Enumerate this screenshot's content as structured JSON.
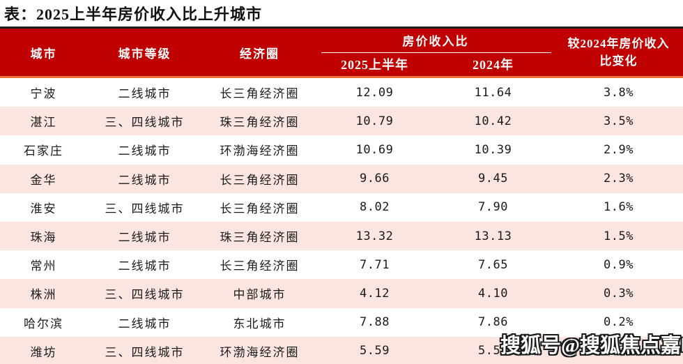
{
  "title": "表：2025上半年房价收入比上升城市",
  "watermark": "搜狐号@搜狐焦点嘉峪关站",
  "colors": {
    "header_bg": "#C00000",
    "header_text": "#ffffff",
    "accent_rule": "#E97132",
    "top_rule": "#1f1f1f",
    "row_alt_bg": "#FBE5E1",
    "body_text": "#1a1a1a"
  },
  "table": {
    "columns": {
      "city": "城市",
      "tier": "城市等级",
      "region": "经济圈",
      "ratio_group": "房价收入比",
      "ratio_2025": "2025上半年",
      "ratio_2024": "2024年",
      "change_line1": "较2024年房价收入",
      "change_line2": "比变化"
    },
    "rows": [
      {
        "city": "宁波",
        "tier": "二线城市",
        "region": "长三角经济圈",
        "r2025": "12.09",
        "r2024": "11.64",
        "change": "3.8%"
      },
      {
        "city": "湛江",
        "tier": "三、四线城市",
        "region": "珠三角经济圈",
        "r2025": "10.79",
        "r2024": "10.42",
        "change": "3.5%"
      },
      {
        "city": "石家庄",
        "tier": "二线城市",
        "region": "环渤海经济圈",
        "r2025": "10.69",
        "r2024": "10.39",
        "change": "2.9%"
      },
      {
        "city": "金华",
        "tier": "二线城市",
        "region": "长三角经济圈",
        "r2025": "9.66",
        "r2024": "9.45",
        "change": "2.3%"
      },
      {
        "city": "淮安",
        "tier": "三、四线城市",
        "region": "长三角经济圈",
        "r2025": "8.02",
        "r2024": "7.90",
        "change": "1.6%"
      },
      {
        "city": "珠海",
        "tier": "二线城市",
        "region": "珠三角经济圈",
        "r2025": "13.32",
        "r2024": "13.13",
        "change": "1.5%"
      },
      {
        "city": "常州",
        "tier": "二线城市",
        "region": "长三角经济圈",
        "r2025": "7.71",
        "r2024": "7.65",
        "change": "0.9%"
      },
      {
        "city": "株洲",
        "tier": "三、四线城市",
        "region": "中部城市",
        "r2025": "4.12",
        "r2024": "4.10",
        "change": "0.3%"
      },
      {
        "city": "哈尔滨",
        "tier": "二线城市",
        "region": "东北城市",
        "r2025": "7.88",
        "r2024": "7.86",
        "change": "0.2%"
      },
      {
        "city": "潍坊",
        "tier": "三、四线城市",
        "region": "环渤海经济圈",
        "r2025": "5.59",
        "r2024": "5.58",
        "change": "0.2%"
      }
    ]
  },
  "chart_data": {
    "type": "table",
    "title": "表：2025上半年房价收入比上升城市",
    "columns": [
      "城市",
      "城市等级",
      "经济圈",
      "房价收入比 2025上半年",
      "房价收入比 2024年",
      "较2024年房价收入比变化"
    ],
    "rows": [
      [
        "宁波",
        "二线城市",
        "长三角经济圈",
        12.09,
        11.64,
        "3.8%"
      ],
      [
        "湛江",
        "三、四线城市",
        "珠三角经济圈",
        10.79,
        10.42,
        "3.5%"
      ],
      [
        "石家庄",
        "二线城市",
        "环渤海经济圈",
        10.69,
        10.39,
        "2.9%"
      ],
      [
        "金华",
        "二线城市",
        "长三角经济圈",
        9.66,
        9.45,
        "2.3%"
      ],
      [
        "淮安",
        "三、四线城市",
        "长三角经济圈",
        8.02,
        7.9,
        "1.6%"
      ],
      [
        "珠海",
        "二线城市",
        "珠三角经济圈",
        13.32,
        13.13,
        "1.5%"
      ],
      [
        "常州",
        "二线城市",
        "长三角经济圈",
        7.71,
        7.65,
        "0.9%"
      ],
      [
        "株洲",
        "三、四线城市",
        "中部城市",
        4.12,
        4.1,
        "0.3%"
      ],
      [
        "哈尔滨",
        "二线城市",
        "东北城市",
        7.88,
        7.86,
        "0.2%"
      ],
      [
        "潍坊",
        "三、四线城市",
        "环渤海经济圈",
        5.59,
        5.58,
        "0.2%"
      ]
    ]
  }
}
